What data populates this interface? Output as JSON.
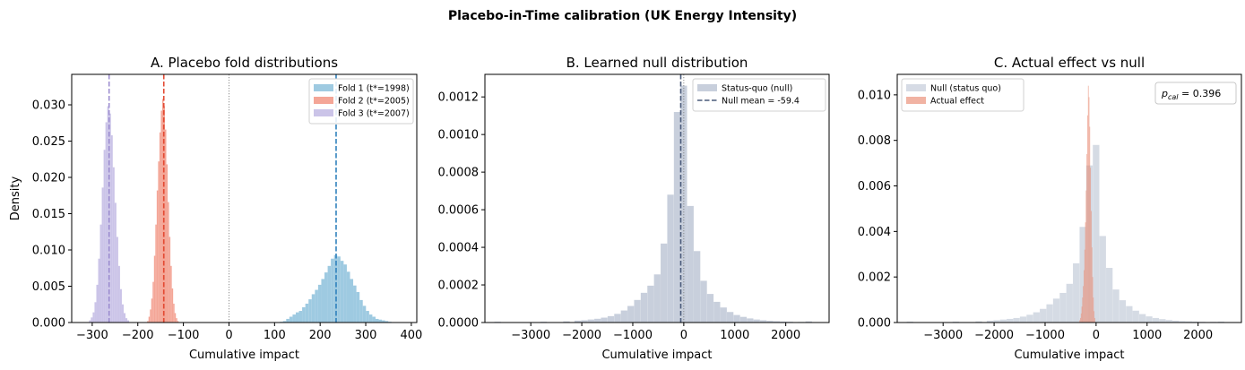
{
  "figure": {
    "title": "Placebo-in-Time calibration (UK Energy Intensity)"
  },
  "chart_data": [
    {
      "id": "A",
      "type": "histogram",
      "title": "A. Placebo fold distributions",
      "xlabel": "Cumulative impact",
      "ylabel": "Density",
      "xlim": [
        -345,
        412
      ],
      "ylim": [
        0,
        0.0342
      ],
      "xticks": [
        -300,
        -200,
        -100,
        0,
        100,
        200,
        300,
        400
      ],
      "yticks": [
        0.0,
        0.005,
        0.01,
        0.015,
        0.02,
        0.025,
        0.03
      ],
      "ytick_labels": [
        "0.000",
        "0.005",
        "0.010",
        "0.015",
        "0.020",
        "0.025",
        "0.030"
      ],
      "xtick_labels": [
        "−300",
        "−200",
        "−100",
        "0",
        "100",
        "200",
        "300",
        "400"
      ],
      "zero_line": 0,
      "legend_position": "top-right",
      "series": [
        {
          "name": "Fold 1 (t*=1998)",
          "color": "#9ecae1",
          "line_color": "#3182bd",
          "mean": 235,
          "bins": [
            [
              108,
              6e-05
            ],
            [
              115,
              0.0001
            ],
            [
              122,
              0.0002
            ],
            [
              129,
              0.0005
            ],
            [
              136,
              0.0008
            ],
            [
              143,
              0.0011
            ],
            [
              150,
              0.0014
            ],
            [
              157,
              0.0016
            ],
            [
              164,
              0.0021
            ],
            [
              171,
              0.0026
            ],
            [
              178,
              0.0032
            ],
            [
              185,
              0.0039
            ],
            [
              192,
              0.0045
            ],
            [
              199,
              0.0052
            ],
            [
              206,
              0.006
            ],
            [
              213,
              0.0069
            ],
            [
              220,
              0.0078
            ],
            [
              227,
              0.0088
            ],
            [
              234,
              0.0093
            ],
            [
              241,
              0.0091
            ],
            [
              248,
              0.0085
            ],
            [
              255,
              0.008
            ],
            [
              262,
              0.007
            ],
            [
              269,
              0.006
            ],
            [
              276,
              0.0051
            ],
            [
              283,
              0.0042
            ],
            [
              290,
              0.0031
            ],
            [
              297,
              0.0023
            ],
            [
              304,
              0.0016
            ],
            [
              311,
              0.0011
            ],
            [
              318,
              0.0008
            ],
            [
              325,
              0.0005
            ],
            [
              332,
              0.0004
            ],
            [
              339,
              0.0003
            ],
            [
              346,
              0.0002
            ],
            [
              353,
              0.0001
            ],
            [
              360,
              6e-05
            ],
            [
              367,
              3e-05
            ]
          ],
          "bin_width": 7
        },
        {
          "name": "Fold 2 (t*=2005)",
          "color": "#f4a697",
          "line_color": "#e34a33",
          "mean": -143,
          "bins": [
            [
              -178,
              0.0002
            ],
            [
              -175,
              0.0008
            ],
            [
              -172,
              0.0018
            ],
            [
              -169,
              0.0033
            ],
            [
              -166,
              0.0056
            ],
            [
              -163,
              0.0092
            ],
            [
              -160,
              0.0135
            ],
            [
              -157,
              0.0182
            ],
            [
              -154,
              0.0222
            ],
            [
              -151,
              0.0262
            ],
            [
              -148,
              0.0292
            ],
            [
              -145,
              0.0308
            ],
            [
              -142,
              0.0298
            ],
            [
              -139,
              0.0266
            ],
            [
              -136,
              0.0218
            ],
            [
              -133,
              0.0166
            ],
            [
              -130,
              0.0118
            ],
            [
              -127,
              0.0078
            ],
            [
              -124,
              0.0047
            ],
            [
              -121,
              0.0026
            ],
            [
              -118,
              0.0013
            ],
            [
              -115,
              0.0006
            ],
            [
              -112,
              0.0002
            ]
          ],
          "bin_width": 3
        },
        {
          "name": "Fold 3 (t*=2007)",
          "color": "#cbc4e8",
          "line_color": "#9e8fd0",
          "mean": -263,
          "bins": [
            [
              -305,
              0.0003
            ],
            [
              -301,
              0.0007
            ],
            [
              -297,
              0.0014
            ],
            [
              -293,
              0.0028
            ],
            [
              -289,
              0.0052
            ],
            [
              -285,
              0.0088
            ],
            [
              -281,
              0.0135
            ],
            [
              -277,
              0.0186
            ],
            [
              -273,
              0.0238
            ],
            [
              -269,
              0.0276
            ],
            [
              -265,
              0.0298
            ],
            [
              -261,
              0.0288
            ],
            [
              -257,
              0.0258
            ],
            [
              -253,
              0.0214
            ],
            [
              -249,
              0.0165
            ],
            [
              -245,
              0.0118
            ],
            [
              -241,
              0.0078
            ],
            [
              -237,
              0.0046
            ],
            [
              -233,
              0.0025
            ],
            [
              -229,
              0.0013
            ],
            [
              -225,
              0.0006
            ],
            [
              -221,
              0.0003
            ]
          ],
          "bin_width": 4
        }
      ]
    },
    {
      "id": "B",
      "type": "histogram",
      "title": "B. Learned null distribution",
      "xlabel": "Cumulative impact",
      "ylabel": "",
      "xlim": [
        -3900,
        2850
      ],
      "ylim": [
        0,
        0.00132
      ],
      "xticks": [
        -3000,
        -2000,
        -1000,
        0,
        1000,
        2000
      ],
      "xtick_labels": [
        "−3000",
        "−2000",
        "−1000",
        "0",
        "1000",
        "2000"
      ],
      "yticks": [
        0.0,
        0.0002,
        0.0004,
        0.0006,
        0.0008,
        0.001,
        0.0012
      ],
      "ytick_labels": [
        "0.0000",
        "0.0002",
        "0.0004",
        "0.0006",
        "0.0008",
        "0.0010",
        "0.0012"
      ],
      "zero_line": 0,
      "legend_position": "top-right",
      "series": [
        {
          "name": "Status-quo (null)",
          "color": "#c8cfdc",
          "bin_width": 128,
          "bins": [
            [
              -3650,
              4e-06
            ],
            [
              -2750,
              4e-06
            ],
            [
              -2300,
              6e-06
            ],
            [
              -2080,
              1e-05
            ],
            [
              -1950,
              1.2e-05
            ],
            [
              -1820,
              1.6e-05
            ],
            [
              -1690,
              2e-05
            ],
            [
              -1560,
              2.6e-05
            ],
            [
              -1430,
              3.4e-05
            ],
            [
              -1300,
              4.6e-05
            ],
            [
              -1170,
              6.4e-05
            ],
            [
              -1040,
              8.8e-05
            ],
            [
              -910,
              0.00012
            ],
            [
              -780,
              0.000158
            ],
            [
              -650,
              0.000196
            ],
            [
              -520,
              0.000256
            ],
            [
              -390,
              0.00042
            ],
            [
              -260,
              0.00068
            ],
            [
              -130,
              0.00112
            ],
            [
              0,
              0.00126
            ],
            [
              130,
              0.00062
            ],
            [
              260,
              0.00038
            ],
            [
              390,
              0.000222
            ],
            [
              520,
              0.000152
            ],
            [
              650,
              0.00011
            ],
            [
              780,
              8e-05
            ],
            [
              910,
              5.6e-05
            ],
            [
              1040,
              4e-05
            ],
            [
              1170,
              3e-05
            ],
            [
              1300,
              2.2e-05
            ],
            [
              1430,
              1.6e-05
            ],
            [
              1560,
              1.2e-05
            ],
            [
              1690,
              9e-06
            ],
            [
              1820,
              7e-06
            ],
            [
              1950,
              5e-06
            ],
            [
              2080,
              4e-06
            ],
            [
              2300,
              3e-06
            ],
            [
              2450,
              6e-06
            ]
          ]
        },
        {
          "name": "Null mean = -59.4",
          "line_color": "#4a5a7a",
          "mean": -59.4,
          "style": "dashed"
        }
      ]
    },
    {
      "id": "C",
      "type": "histogram",
      "title": "C. Actual effect vs null",
      "xlabel": "Cumulative impact",
      "ylabel": "",
      "xlim": [
        -3900,
        2850
      ],
      "ylim": [
        0,
        0.0109
      ],
      "xticks": [
        -3000,
        -2000,
        -1000,
        0,
        1000,
        2000
      ],
      "xtick_labels": [
        "−3000",
        "−2000",
        "−1000",
        "0",
        "1000",
        "2000"
      ],
      "yticks": [
        0.0,
        0.002,
        0.004,
        0.006,
        0.008,
        0.01
      ],
      "ytick_labels": [
        "0.000",
        "0.002",
        "0.004",
        "0.006",
        "0.008",
        "0.010"
      ],
      "legend_position": "top-left",
      "annotation": {
        "label": "p",
        "subscript": "cal",
        "value": " = 0.396"
      },
      "series": [
        {
          "name": "Null (status quo)",
          "color": "#c8cfdc",
          "alpha": 0.75,
          "bin_width": 128,
          "bins": [
            [
              -3650,
              4e-05
            ],
            [
              -2750,
              4e-05
            ],
            [
              -2300,
              5e-05
            ],
            [
              -2080,
              8e-05
            ],
            [
              -1950,
              0.0001
            ],
            [
              -1820,
              0.00013
            ],
            [
              -1690,
              0.00016
            ],
            [
              -1560,
              0.0002
            ],
            [
              -1430,
              0.00026
            ],
            [
              -1300,
              0.00034
            ],
            [
              -1170,
              0.00045
            ],
            [
              -1040,
              0.0006
            ],
            [
              -910,
              0.0008
            ],
            [
              -780,
              0.00105
            ],
            [
              -650,
              0.0013
            ],
            [
              -520,
              0.0017
            ],
            [
              -390,
              0.0026
            ],
            [
              -260,
              0.0042
            ],
            [
              -130,
              0.0069
            ],
            [
              0,
              0.0078
            ],
            [
              130,
              0.0038
            ],
            [
              260,
              0.0024
            ],
            [
              390,
              0.00145
            ],
            [
              520,
              0.00098
            ],
            [
              650,
              0.00072
            ],
            [
              780,
              0.00052
            ],
            [
              910,
              0.00037
            ],
            [
              1040,
              0.00027
            ],
            [
              1170,
              0.0002
            ],
            [
              1300,
              0.00015
            ],
            [
              1430,
              0.00011
            ],
            [
              1560,
              8e-05
            ],
            [
              1690,
              6e-05
            ],
            [
              1820,
              5e-05
            ],
            [
              1950,
              4e-05
            ],
            [
              2080,
              3e-05
            ],
            [
              2300,
              3e-05
            ],
            [
              2450,
              4e-05
            ]
          ]
        },
        {
          "name": "Actual effect",
          "color": "#e98a72",
          "alpha": 0.65,
          "bin_width": 14,
          "bins": [
            [
              -320,
              0.0001
            ],
            [
              -306,
              0.0002
            ],
            [
              -292,
              0.0004
            ],
            [
              -278,
              0.0007
            ],
            [
              -264,
              0.0011
            ],
            [
              -250,
              0.0016
            ],
            [
              -236,
              0.0023
            ],
            [
              -222,
              0.0032
            ],
            [
              -208,
              0.0044
            ],
            [
              -194,
              0.0058
            ],
            [
              -180,
              0.0074
            ],
            [
              -166,
              0.0091
            ],
            [
              -152,
              0.0104
            ],
            [
              -138,
              0.0099
            ],
            [
              -124,
              0.0086
            ],
            [
              -110,
              0.0068
            ],
            [
              -96,
              0.0049
            ],
            [
              -82,
              0.0033
            ],
            [
              -68,
              0.002
            ],
            [
              -54,
              0.0011
            ],
            [
              -40,
              0.0005
            ],
            [
              -26,
              0.0002
            ]
          ]
        }
      ]
    }
  ]
}
